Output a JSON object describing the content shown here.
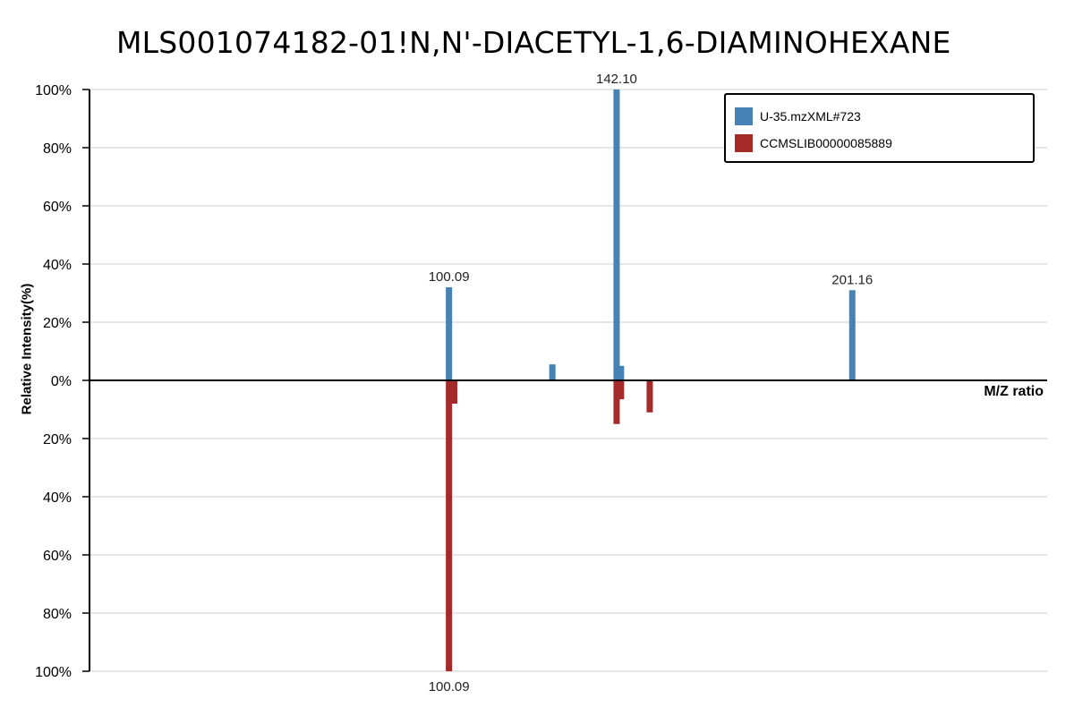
{
  "title": "MLS001074182-01!N,N'-DIACETYL-1,6-DIAMINOHEXANE",
  "colors": {
    "top": "#4682b4",
    "bottom": "#a52a2a",
    "grid": "#dddddd",
    "axis": "#000000"
  },
  "chart_data": {
    "type": "bar",
    "title": "MLS001074182-01!N,N'-DIACETYL-1,6-DIAMINOHEXANE",
    "xlabel": "M/Z ratio",
    "ylabel": "Relative Intensity(%)",
    "xlim": [
      10,
      250
    ],
    "ylim_top": [
      0,
      100
    ],
    "ylim_bottom": [
      0,
      100
    ],
    "yticks_top": [
      "100%",
      "80%",
      "60%",
      "40%",
      "20%",
      "0%"
    ],
    "yticks_bottom": [
      "20%",
      "40%",
      "60%",
      "80%",
      "100%"
    ],
    "grid": true,
    "legend_position": "top-right",
    "series": [
      {
        "name": "U-35.mzXML#723",
        "direction": "up",
        "color": "#4682b4",
        "points": [
          {
            "mz": 100.09,
            "intensity": 32,
            "label": "100.09"
          },
          {
            "mz": 126.0,
            "intensity": 5.5
          },
          {
            "mz": 142.1,
            "intensity": 100,
            "label": "142.10"
          },
          {
            "mz": 143.2,
            "intensity": 5
          },
          {
            "mz": 201.16,
            "intensity": 31,
            "label": "201.16"
          }
        ]
      },
      {
        "name": "CCMSLIB00000085889",
        "direction": "down",
        "color": "#a52a2a",
        "points": [
          {
            "mz": 100.09,
            "intensity": 100,
            "label": "100.09"
          },
          {
            "mz": 101.4,
            "intensity": 8
          },
          {
            "mz": 142.1,
            "intensity": 15
          },
          {
            "mz": 143.2,
            "intensity": 6.5
          },
          {
            "mz": 150.4,
            "intensity": 11
          }
        ]
      }
    ]
  }
}
